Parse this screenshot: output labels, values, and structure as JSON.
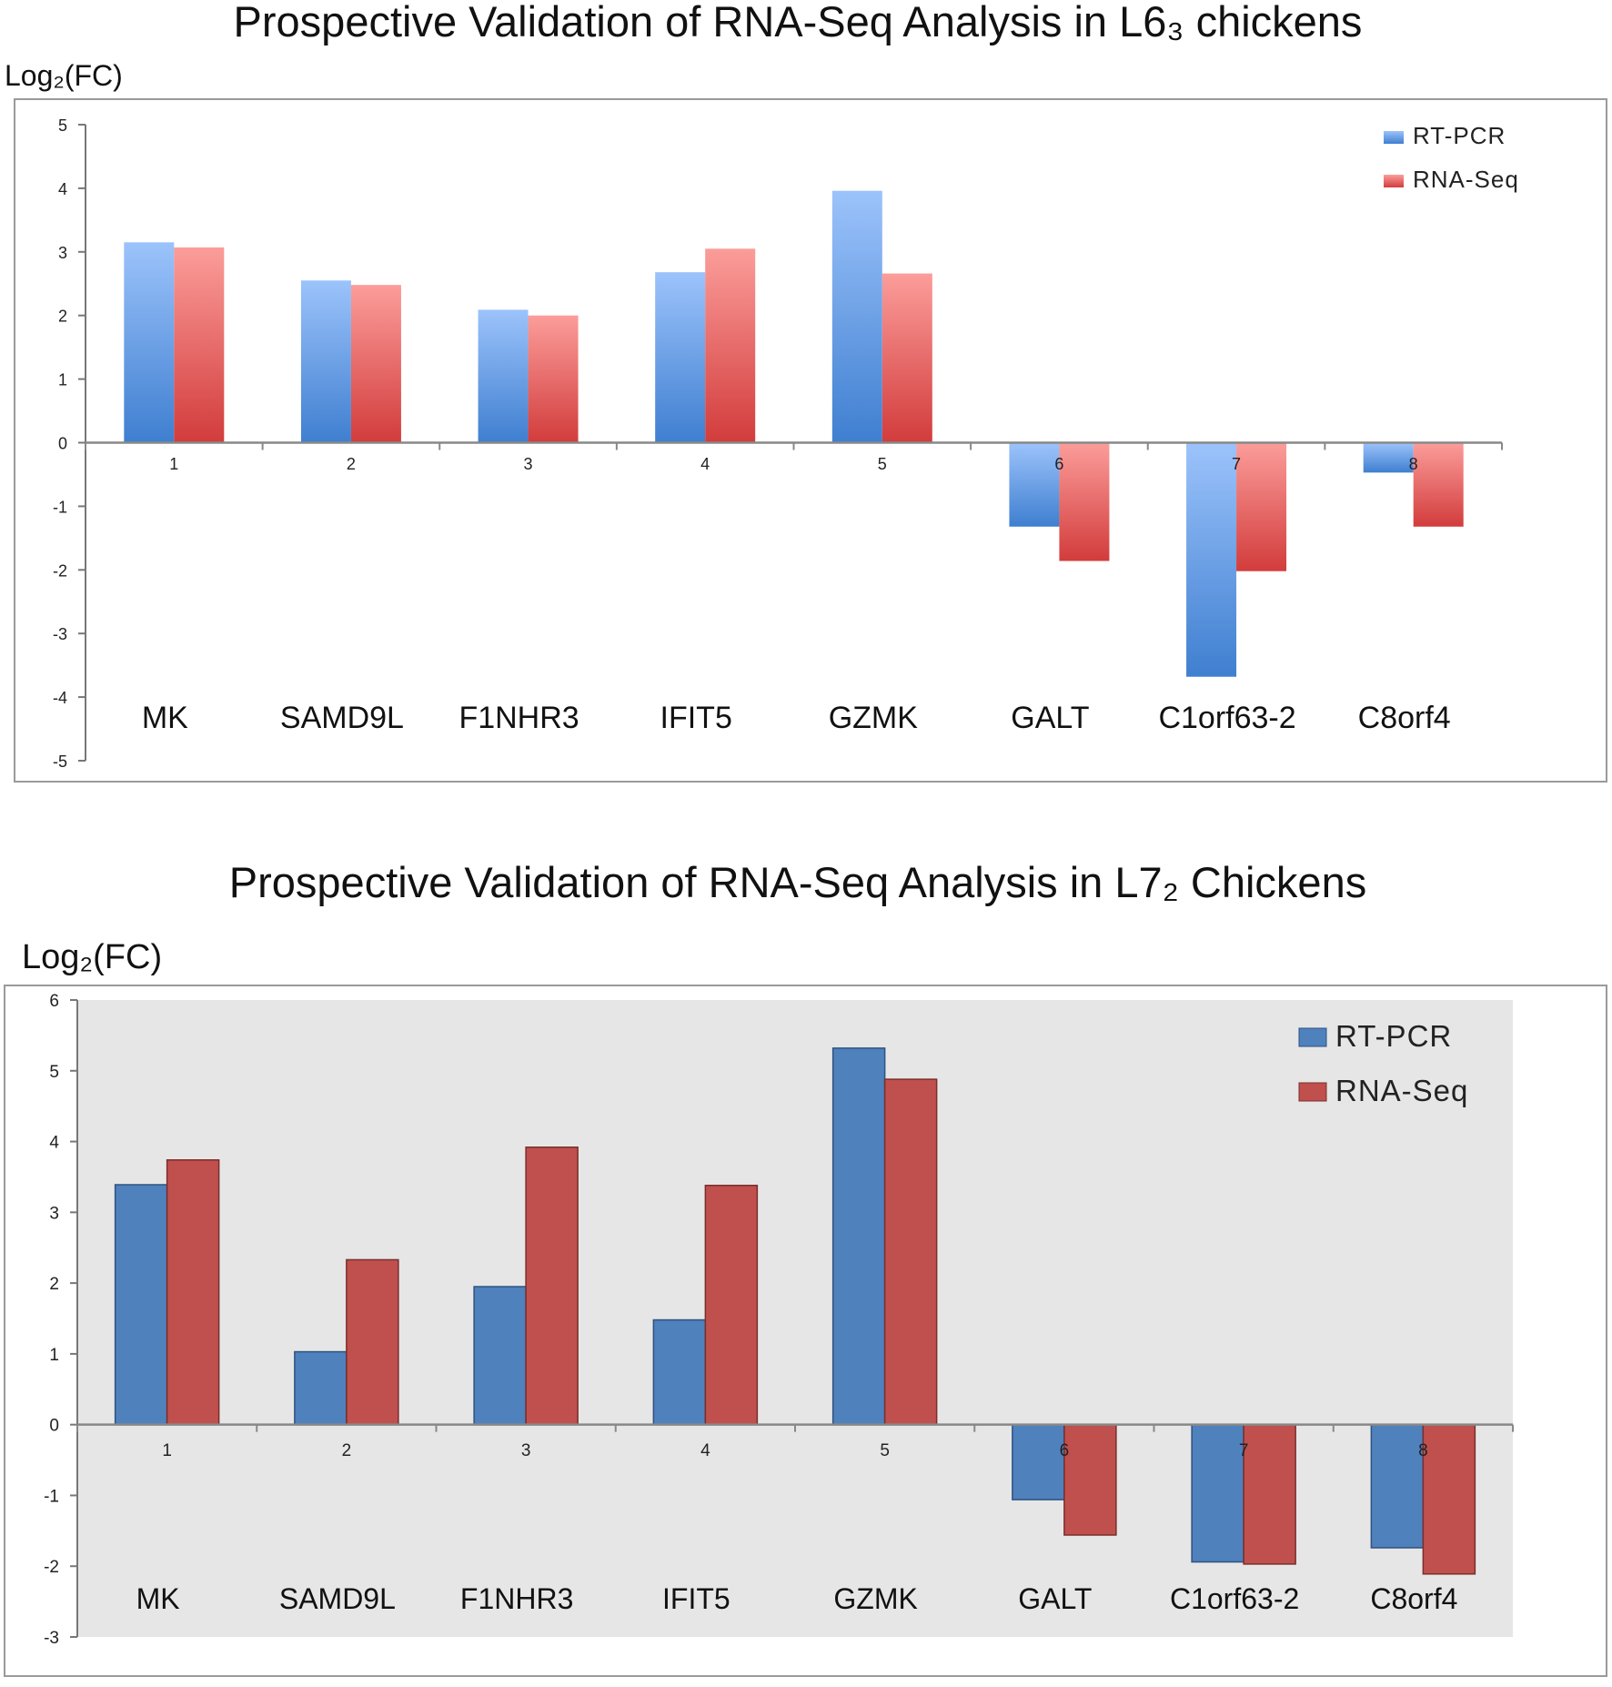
{
  "chart_data": [
    {
      "type": "bar",
      "title": "Prospective Validation of RNA-Seq Analysis in L6₃ chickens",
      "ylabel": "Log₂(FC)",
      "xlabel": "",
      "ylim": [
        -5,
        5
      ],
      "yticks": [
        "5",
        "4",
        "3",
        "2",
        "1",
        "0",
        "-1",
        "-2",
        "-3",
        "-4",
        "-5"
      ],
      "categories": [
        "1",
        "2",
        "3",
        "4",
        "5",
        "6",
        "7",
        "8"
      ],
      "gene_labels": [
        "MK",
        "SAMD9L",
        "F1NHR3",
        "IFIT5",
        "GZMK",
        "GALT",
        "C1orf63-2",
        "C8orf4"
      ],
      "legend_position": "top-right",
      "series": [
        {
          "name": "RT-PCR",
          "color": "#4a86d8",
          "values": [
            3.15,
            2.55,
            2.09,
            2.68,
            3.96,
            -1.32,
            -3.68,
            -0.47
          ]
        },
        {
          "name": "RNA-Seq",
          "color": "#d84a4a",
          "values": [
            3.07,
            2.48,
            2.0,
            3.05,
            2.66,
            -1.86,
            -2.02,
            -1.32
          ]
        }
      ]
    },
    {
      "type": "bar",
      "title": "Prospective Validation of RNA-Seq Analysis in L7₂ Chickens",
      "ylabel": "Log₂(FC)",
      "xlabel": "",
      "ylim": [
        -3,
        6
      ],
      "yticks": [
        "6",
        "5",
        "4",
        "3",
        "2",
        "1",
        "0",
        "-1",
        "-2",
        "-3"
      ],
      "categories": [
        "1",
        "2",
        "3",
        "4",
        "5",
        "6",
        "7",
        "8"
      ],
      "gene_labels": [
        "MK",
        "SAMD9L",
        "F1NHR3",
        "IFIT5",
        "GZMK",
        "GALT",
        "C1orf63-2",
        "C8orf4"
      ],
      "legend_position": "top-right",
      "series": [
        {
          "name": "RT-PCR",
          "color": "#4f81bd",
          "values": [
            3.39,
            1.03,
            1.95,
            1.48,
            5.32,
            -1.06,
            -1.94,
            -1.74
          ]
        },
        {
          "name": "RNA-Seq",
          "color": "#c0504d",
          "values": [
            3.74,
            2.33,
            3.92,
            3.38,
            4.88,
            -1.56,
            -1.97,
            -2.11
          ]
        }
      ]
    }
  ]
}
